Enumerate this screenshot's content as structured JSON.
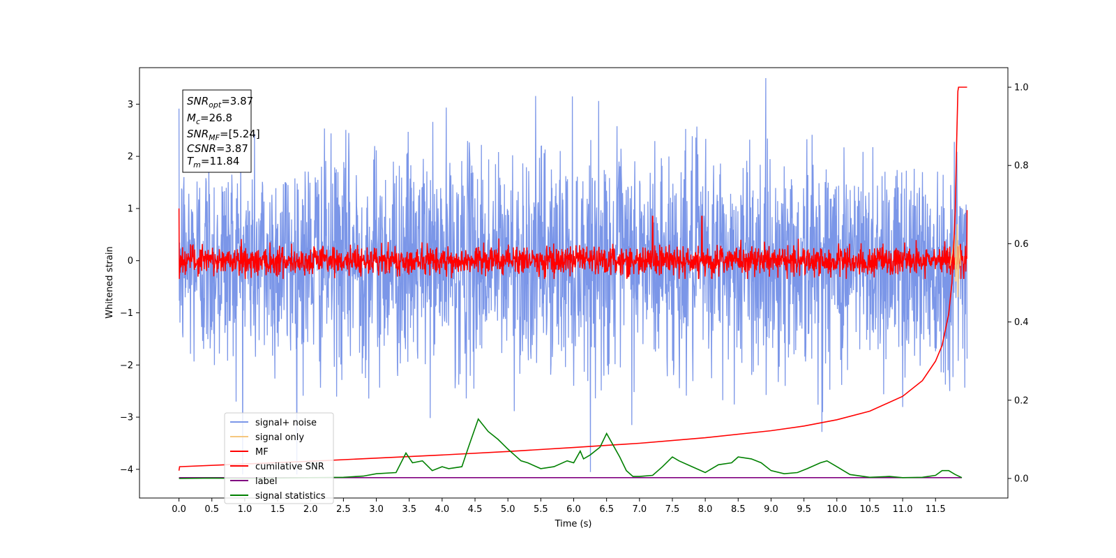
{
  "chart_data": {
    "type": "line",
    "xlabel": "Time (s)",
    "ylabel_left": "Whitened strain",
    "ylabel_right": "",
    "xlim": [
      -0.6,
      12.6
    ],
    "ylim_left": [
      -4.55,
      3.7
    ],
    "ylim_right": [
      -0.05,
      1.05
    ],
    "x_ticks": [
      "0.0",
      "0.5",
      "1.0",
      "1.5",
      "2.0",
      "2.5",
      "3.0",
      "3.5",
      "4.0",
      "4.5",
      "5.0",
      "5.5",
      "6.0",
      "6.5",
      "7.0",
      "7.5",
      "8.0",
      "8.5",
      "9.0",
      "9.5",
      "10.0",
      "10.5",
      "11.0",
      "11.5"
    ],
    "y_ticks_left": [
      "−4",
      "−3",
      "−2",
      "−1",
      "0",
      "1",
      "2",
      "3"
    ],
    "y_ticks_right": [
      "0.0",
      "0.2",
      "0.4",
      "0.6",
      "0.8",
      "1.0"
    ],
    "grid": false,
    "legend_position": "lower-left",
    "annotation": {
      "snr_opt": {
        "sym": "SNR",
        "sub": "opt",
        "val": "=3.87"
      },
      "mc": {
        "sym": "M",
        "sub": "c",
        "val": "=26.8"
      },
      "snr_mf": {
        "sym": "SNR",
        "sub": "MF",
        "val": "=[5.24]"
      },
      "csnr": {
        "sym": "CSNR",
        "sub": "",
        "val": "=3.87"
      },
      "tm": {
        "sym": "T",
        "sub": "m",
        "val": "=11.84"
      }
    },
    "series": [
      {
        "name": "signal+ noise",
        "color": "#7b96e8",
        "axis": "left",
        "description_values": "noise-like whitened strain, amplitude about ±2.5, extremes from −4.1 to 3.5, t = 0 to 11.98 s"
      },
      {
        "name": "signal only",
        "color": "#f5c77e",
        "axis": "left",
        "chirp": {
          "t": [
            11.72,
            11.76,
            11.79,
            11.81,
            11.83,
            11.84,
            11.86,
            11.88
          ],
          "y": [
            -0.1,
            0.2,
            0.5,
            -0.4,
            0.7,
            -0.7,
            0.3,
            -0.1
          ]
        }
      },
      {
        "name": "MF",
        "color": "#ff0000",
        "axis": "left",
        "description_values": "matched-filter output, amplitude about ±0.35, spikes near t = 7.2 s (0.85) and t = 7.95 s (0.85), start value 1.0"
      },
      {
        "name": "cumilative SNR",
        "color": "#ff0000",
        "axis": "right",
        "t": [
          0.0,
          0.01,
          1.0,
          2.0,
          3.0,
          4.0,
          5.0,
          6.0,
          7.0,
          8.0,
          9.0,
          9.5,
          10.0,
          10.5,
          11.0,
          11.3,
          11.5,
          11.6,
          11.7,
          11.75,
          11.8,
          11.82,
          11.84,
          11.85,
          11.98
        ],
        "values": [
          0.02,
          0.03,
          0.037,
          0.044,
          0.052,
          0.06,
          0.069,
          0.079,
          0.09,
          0.104,
          0.122,
          0.134,
          0.15,
          0.172,
          0.21,
          0.25,
          0.3,
          0.34,
          0.42,
          0.5,
          0.68,
          0.85,
          0.99,
          1.0,
          1.0
        ]
      },
      {
        "name": "label",
        "color": "#800080",
        "axis": "right",
        "t": [
          0.0,
          11.9
        ],
        "values": [
          0.002,
          0.002
        ]
      },
      {
        "name": "signal statistics",
        "color": "#008000",
        "axis": "right",
        "t": [
          0.0,
          0.5,
          1.0,
          1.5,
          2.0,
          2.5,
          2.8,
          3.0,
          3.3,
          3.45,
          3.55,
          3.7,
          3.85,
          4.0,
          4.1,
          4.3,
          4.4,
          4.55,
          4.7,
          4.85,
          5.0,
          5.1,
          5.2,
          5.3,
          5.5,
          5.7,
          5.9,
          6.0,
          6.1,
          6.15,
          6.25,
          6.4,
          6.5,
          6.6,
          6.7,
          6.8,
          6.9,
          7.0,
          7.2,
          7.35,
          7.5,
          7.6,
          7.8,
          8.0,
          8.2,
          8.4,
          8.5,
          8.7,
          8.85,
          9.0,
          9.2,
          9.4,
          9.55,
          9.75,
          9.85,
          10.0,
          10.2,
          10.5,
          10.8,
          11.0,
          11.3,
          11.5,
          11.6,
          11.7,
          11.8,
          11.9
        ],
        "values": [
          0.0,
          0.001,
          0.0,
          0.001,
          0.002,
          0.003,
          0.006,
          0.012,
          0.015,
          0.065,
          0.04,
          0.045,
          0.02,
          0.03,
          0.025,
          0.03,
          0.08,
          0.152,
          0.12,
          0.1,
          0.075,
          0.06,
          0.045,
          0.04,
          0.025,
          0.03,
          0.045,
          0.04,
          0.07,
          0.05,
          0.06,
          0.08,
          0.115,
          0.085,
          0.055,
          0.02,
          0.005,
          0.005,
          0.008,
          0.03,
          0.055,
          0.045,
          0.03,
          0.015,
          0.035,
          0.04,
          0.055,
          0.05,
          0.04,
          0.02,
          0.012,
          0.015,
          0.025,
          0.04,
          0.045,
          0.03,
          0.01,
          0.003,
          0.005,
          0.002,
          0.003,
          0.008,
          0.02,
          0.02,
          0.01,
          0.002
        ]
      }
    ]
  },
  "legend": {
    "items": [
      {
        "label": "signal+ noise",
        "color": "#7b96e8"
      },
      {
        "label": "signal only",
        "color": "#f5c77e"
      },
      {
        "label": "MF",
        "color": "#ff0000"
      },
      {
        "label": "cumilative SNR",
        "color": "#ff0000"
      },
      {
        "label": "label",
        "color": "#800080"
      },
      {
        "label": "signal statistics",
        "color": "#008000"
      }
    ]
  }
}
